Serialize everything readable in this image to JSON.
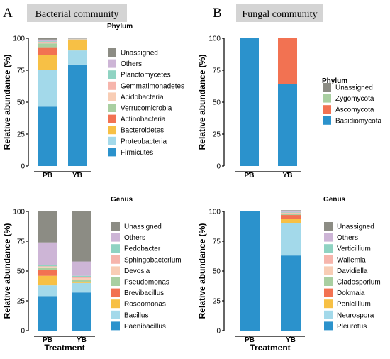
{
  "panels": [
    {
      "letter": "A",
      "title": "Bacterial community"
    },
    {
      "letter": "B",
      "title": "Fungal community"
    }
  ],
  "colors": {
    "Unassigned": "#8c8c84",
    "Others": "#cdb5d6",
    "Planctomycetes": "#8fd3c2",
    "Gemmatimonadetes": "#f6b5ac",
    "Acidobacteria": "#f8cdb5",
    "Verrucomicrobia": "#a9cfa1",
    "Actinobacteria": "#f27252",
    "Bacteroidetes": "#f7c045",
    "Proteobacteria": "#a3d9ea",
    "Firmicutes": "#2b92cc",
    "Zygomycota": "#a9cfa1",
    "Ascomycota": "#f27252",
    "Basidiomycota": "#2b92cc",
    "Pedobacter": "#8fd3c2",
    "Sphingobacterium": "#f6b5ac",
    "Devosia": "#f8cdb5",
    "Pseudomonas": "#a9cfa1",
    "Brevibacillus": "#f27252",
    "Roseomonas": "#f7c045",
    "Bacillus": "#a3d9ea",
    "Paenibacillus": "#2b92cc",
    "Verticillium": "#8fd3c2",
    "Wallemia": "#f6b5ac",
    "Davidiella": "#f8cdb5",
    "Cladosporium": "#a9cfa1",
    "Dokmaia": "#f27252",
    "Penicillium": "#f7c045",
    "Neurospora": "#a3d9ea",
    "Pleurotus": "#2b92cc"
  },
  "chart_data": [
    {
      "type": "bar",
      "stacked": true,
      "panel": "A",
      "categories": [
        "PB",
        "YB"
      ],
      "ylabel": "Relative abundance (%)",
      "xlabel": "",
      "ylim": [
        0,
        100
      ],
      "yticks": [
        0,
        25,
        50,
        75,
        100
      ],
      "legend_title": "Phylum",
      "legend": [
        "Unassigned",
        "Others",
        "Planctomycetes",
        "Gemmatimonadetes",
        "Acidobacteria",
        "Verrucomicrobia",
        "Actinobacteria",
        "Bacteroidetes",
        "Proteobacteria",
        "Firmicutes"
      ],
      "series": [
        {
          "name": "Firmicutes",
          "values": [
            46.5,
            79.5
          ]
        },
        {
          "name": "Proteobacteria",
          "values": [
            28.5,
            11
          ]
        },
        {
          "name": "Bacteroidetes",
          "values": [
            12,
            8
          ]
        },
        {
          "name": "Actinobacteria",
          "values": [
            6,
            0.5
          ]
        },
        {
          "name": "Verrucomicrobia",
          "values": [
            3,
            0.2
          ]
        },
        {
          "name": "Acidobacteria",
          "values": [
            0.7,
            0.2
          ]
        },
        {
          "name": "Gemmatimonadetes",
          "values": [
            0.5,
            0.2
          ]
        },
        {
          "name": "Planctomycetes",
          "values": [
            0.5,
            0.1
          ]
        },
        {
          "name": "Others",
          "values": [
            1.3,
            0.1
          ]
        },
        {
          "name": "Unassigned",
          "values": [
            1,
            0.2
          ]
        }
      ]
    },
    {
      "type": "bar",
      "stacked": true,
      "panel": "B",
      "categories": [
        "PB",
        "YB"
      ],
      "ylabel": "Relative abundance (%)",
      "xlabel": "",
      "ylim": [
        0,
        100
      ],
      "yticks": [
        0,
        25,
        50,
        75,
        100
      ],
      "legend_title": "Phylum",
      "legend": [
        "Unassigned",
        "Zygomycota",
        "Ascomycota",
        "Basidiomycota"
      ],
      "series": [
        {
          "name": "Basidiomycota",
          "values": [
            100,
            64
          ]
        },
        {
          "name": "Ascomycota",
          "values": [
            0,
            36
          ]
        },
        {
          "name": "Zygomycota",
          "values": [
            0,
            0
          ]
        },
        {
          "name": "Unassigned",
          "values": [
            0,
            0
          ]
        }
      ]
    },
    {
      "type": "bar",
      "stacked": true,
      "panel": "A",
      "categories": [
        "PB",
        "YB"
      ],
      "ylabel": "Relative abundance (%)",
      "xlabel": "Treatment",
      "ylim": [
        0,
        100
      ],
      "yticks": [
        0,
        25,
        50,
        75,
        100
      ],
      "legend_title": "Genus",
      "legend": [
        "Unassigned",
        "Others",
        "Pedobacter",
        "Sphingobacterium",
        "Devosia",
        "Pseudomonas",
        "Brevibacillus",
        "Roseomonas",
        "Bacillus",
        "Paenibacillus"
      ],
      "series": [
        {
          "name": "Paenibacillus",
          "values": [
            29,
            32
          ]
        },
        {
          "name": "Bacillus",
          "values": [
            9,
            8
          ]
        },
        {
          "name": "Roseomonas",
          "values": [
            8,
            0.5
          ]
        },
        {
          "name": "Brevibacillus",
          "values": [
            5,
            0.3
          ]
        },
        {
          "name": "Pseudomonas",
          "values": [
            1.5,
            2
          ]
        },
        {
          "name": "Devosia",
          "values": [
            0.5,
            1.2
          ]
        },
        {
          "name": "Sphingobacterium",
          "values": [
            1,
            1
          ]
        },
        {
          "name": "Pedobacter",
          "values": [
            1,
            1
          ]
        },
        {
          "name": "Others",
          "values": [
            19,
            12
          ]
        },
        {
          "name": "Unassigned",
          "values": [
            26,
            42
          ]
        }
      ]
    },
    {
      "type": "bar",
      "stacked": true,
      "panel": "B",
      "categories": [
        "PB",
        "YB"
      ],
      "ylabel": "Relative abundance (%)",
      "xlabel": "Treatment",
      "ylim": [
        0,
        100
      ],
      "yticks": [
        0,
        25,
        50,
        75,
        100
      ],
      "legend_title": "Genus",
      "legend": [
        "Unassigned",
        "Others",
        "Verticillium",
        "Wallemia",
        "Davidiella",
        "Cladosporium",
        "Dokmaia",
        "Penicillium",
        "Neurospora",
        "Pleurotus"
      ],
      "series": [
        {
          "name": "Pleurotus",
          "values": [
            100,
            63
          ]
        },
        {
          "name": "Neurospora",
          "values": [
            0,
            27
          ]
        },
        {
          "name": "Penicillium",
          "values": [
            0,
            4
          ]
        },
        {
          "name": "Dokmaia",
          "values": [
            0,
            3
          ]
        },
        {
          "name": "Cladosporium",
          "values": [
            0,
            1
          ]
        },
        {
          "name": "Davidiella",
          "values": [
            0,
            0.5
          ]
        },
        {
          "name": "Wallemia",
          "values": [
            0,
            0.5
          ]
        },
        {
          "name": "Verticillium",
          "values": [
            0,
            0.5
          ]
        },
        {
          "name": "Others",
          "values": [
            0,
            0.5
          ]
        },
        {
          "name": "Unassigned",
          "values": [
            0,
            1
          ]
        }
      ]
    }
  ]
}
